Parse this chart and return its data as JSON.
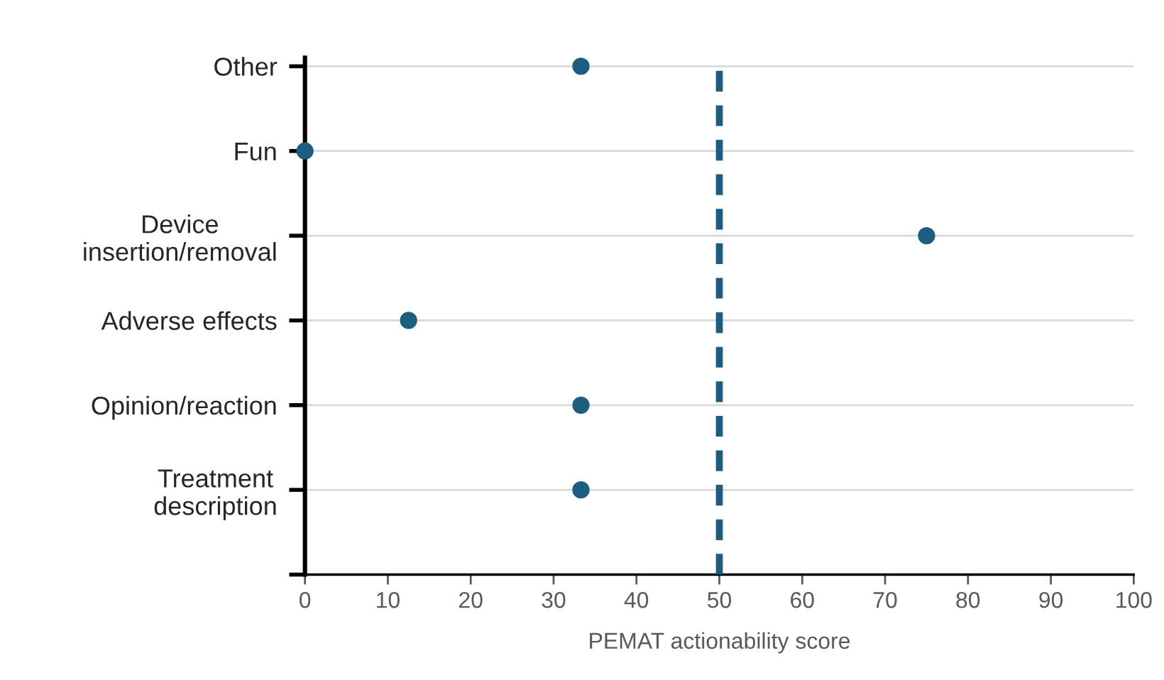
{
  "chart_data": {
    "type": "scatter",
    "orientation": "horizontal",
    "categories": [
      "Other",
      "Fun",
      "Device\ninsertion/removal",
      "Adverse effects",
      "Opinion/reaction",
      "Treatment\ndescription"
    ],
    "series": [
      {
        "color": "#1b5e80",
        "values": [
          33.3,
          0,
          75,
          12.5,
          33.3,
          33.3
        ]
      }
    ],
    "xlabel": "PEMAT actionability score",
    "xlim": [
      0,
      100
    ],
    "xticks": [
      0,
      10,
      20,
      30,
      40,
      50,
      60,
      70,
      80,
      90,
      100
    ],
    "ref_lines": [
      {
        "axis": "x",
        "value": 50,
        "color": "#1b5e80",
        "line_style": "dashed"
      }
    ],
    "grid": "y",
    "marker": "circle",
    "legend": false
  }
}
